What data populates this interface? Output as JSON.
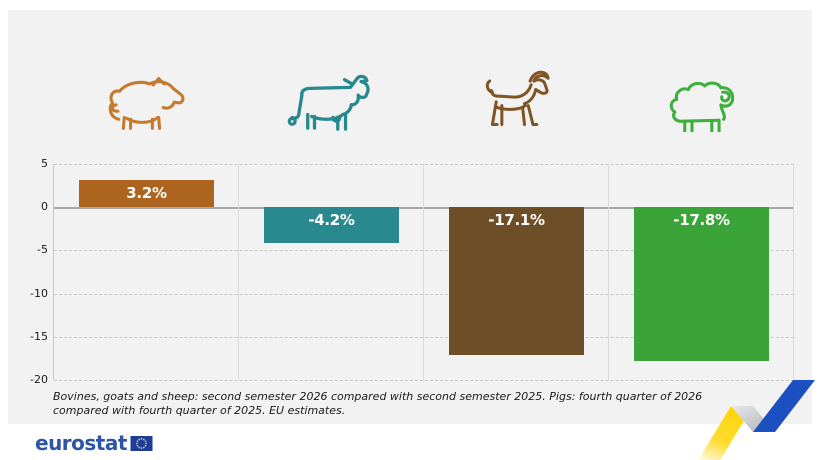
{
  "icons": [
    {
      "name": "pig",
      "color": "#C47B2E"
    },
    {
      "name": "cow",
      "color": "#27888D"
    },
    {
      "name": "goat",
      "color": "#7F5526"
    },
    {
      "name": "sheep",
      "color": "#3DAF3C"
    }
  ],
  "chart_data": {
    "type": "bar",
    "title": "",
    "categories": [
      "pigs",
      "bovines",
      "goats",
      "sheep"
    ],
    "values": [
      3.2,
      -4.2,
      -17.1,
      -17.8
    ],
    "labels": [
      "3.2%",
      "-4.2%",
      "-17.1%",
      "-17.8%"
    ],
    "bar_colors": [
      "#AC641E",
      "#29898E",
      "#6E4E27",
      "#3BA439"
    ],
    "value_label_color": "#FFFFFF",
    "yticks": [
      5,
      0,
      -5,
      -10,
      -15,
      -20
    ],
    "ylim": [
      -20,
      5
    ],
    "xlabel": "",
    "ylabel": "",
    "grid": "horizontal dashed gridlines, solid zero line, vertical category separators",
    "legend": "none (animal icons above each bar)"
  },
  "footnote": "Bovines, goats and sheep: second semester 2026 compared with second semester 2025. Pigs: fourth quarter of 2026 compared with fourth quarter of 2025. EU estimates.",
  "footer": {
    "logo_text": "eurostat",
    "flag_blue": "#1E3C9B",
    "star_yellow": "#FFD617"
  },
  "ribbon_colors": {
    "yellow": "#FFD60C",
    "gray": "#ACAFB4",
    "blue": "#1C4FC0"
  }
}
